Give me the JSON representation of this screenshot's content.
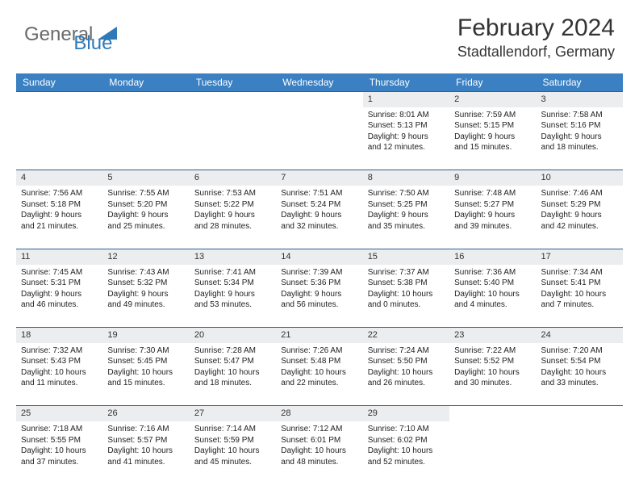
{
  "logo": {
    "part1": "General",
    "part2": "Blue"
  },
  "title": "February 2024",
  "location": "Stadtallendorf, Germany",
  "colors": {
    "header_bg": "#3a80c3",
    "header_fg": "#ffffff",
    "daynum_bg": "#ecedee",
    "row_border": "#2f5f8f",
    "logo_gray": "#6a6a6a",
    "logo_blue": "#2f79b9"
  },
  "daysOfWeek": [
    "Sunday",
    "Monday",
    "Tuesday",
    "Wednesday",
    "Thursday",
    "Friday",
    "Saturday"
  ],
  "weeks": [
    {
      "nums": [
        "",
        "",
        "",
        "",
        "1",
        "2",
        "3"
      ],
      "cells": [
        null,
        null,
        null,
        null,
        {
          "sunrise": "8:01 AM",
          "sunset": "5:13 PM",
          "dl_h": 9,
          "dl_m": 12
        },
        {
          "sunrise": "7:59 AM",
          "sunset": "5:15 PM",
          "dl_h": 9,
          "dl_m": 15
        },
        {
          "sunrise": "7:58 AM",
          "sunset": "5:16 PM",
          "dl_h": 9,
          "dl_m": 18
        }
      ]
    },
    {
      "nums": [
        "4",
        "5",
        "6",
        "7",
        "8",
        "9",
        "10"
      ],
      "cells": [
        {
          "sunrise": "7:56 AM",
          "sunset": "5:18 PM",
          "dl_h": 9,
          "dl_m": 21
        },
        {
          "sunrise": "7:55 AM",
          "sunset": "5:20 PM",
          "dl_h": 9,
          "dl_m": 25
        },
        {
          "sunrise": "7:53 AM",
          "sunset": "5:22 PM",
          "dl_h": 9,
          "dl_m": 28
        },
        {
          "sunrise": "7:51 AM",
          "sunset": "5:24 PM",
          "dl_h": 9,
          "dl_m": 32
        },
        {
          "sunrise": "7:50 AM",
          "sunset": "5:25 PM",
          "dl_h": 9,
          "dl_m": 35
        },
        {
          "sunrise": "7:48 AM",
          "sunset": "5:27 PM",
          "dl_h": 9,
          "dl_m": 39
        },
        {
          "sunrise": "7:46 AM",
          "sunset": "5:29 PM",
          "dl_h": 9,
          "dl_m": 42
        }
      ]
    },
    {
      "nums": [
        "11",
        "12",
        "13",
        "14",
        "15",
        "16",
        "17"
      ],
      "cells": [
        {
          "sunrise": "7:45 AM",
          "sunset": "5:31 PM",
          "dl_h": 9,
          "dl_m": 46
        },
        {
          "sunrise": "7:43 AM",
          "sunset": "5:32 PM",
          "dl_h": 9,
          "dl_m": 49
        },
        {
          "sunrise": "7:41 AM",
          "sunset": "5:34 PM",
          "dl_h": 9,
          "dl_m": 53
        },
        {
          "sunrise": "7:39 AM",
          "sunset": "5:36 PM",
          "dl_h": 9,
          "dl_m": 56
        },
        {
          "sunrise": "7:37 AM",
          "sunset": "5:38 PM",
          "dl_h": 10,
          "dl_m": 0
        },
        {
          "sunrise": "7:36 AM",
          "sunset": "5:40 PM",
          "dl_h": 10,
          "dl_m": 4
        },
        {
          "sunrise": "7:34 AM",
          "sunset": "5:41 PM",
          "dl_h": 10,
          "dl_m": 7
        }
      ]
    },
    {
      "nums": [
        "18",
        "19",
        "20",
        "21",
        "22",
        "23",
        "24"
      ],
      "cells": [
        {
          "sunrise": "7:32 AM",
          "sunset": "5:43 PM",
          "dl_h": 10,
          "dl_m": 11
        },
        {
          "sunrise": "7:30 AM",
          "sunset": "5:45 PM",
          "dl_h": 10,
          "dl_m": 15
        },
        {
          "sunrise": "7:28 AM",
          "sunset": "5:47 PM",
          "dl_h": 10,
          "dl_m": 18
        },
        {
          "sunrise": "7:26 AM",
          "sunset": "5:48 PM",
          "dl_h": 10,
          "dl_m": 22
        },
        {
          "sunrise": "7:24 AM",
          "sunset": "5:50 PM",
          "dl_h": 10,
          "dl_m": 26
        },
        {
          "sunrise": "7:22 AM",
          "sunset": "5:52 PM",
          "dl_h": 10,
          "dl_m": 30
        },
        {
          "sunrise": "7:20 AM",
          "sunset": "5:54 PM",
          "dl_h": 10,
          "dl_m": 33
        }
      ]
    },
    {
      "nums": [
        "25",
        "26",
        "27",
        "28",
        "29",
        "",
        ""
      ],
      "cells": [
        {
          "sunrise": "7:18 AM",
          "sunset": "5:55 PM",
          "dl_h": 10,
          "dl_m": 37
        },
        {
          "sunrise": "7:16 AM",
          "sunset": "5:57 PM",
          "dl_h": 10,
          "dl_m": 41
        },
        {
          "sunrise": "7:14 AM",
          "sunset": "5:59 PM",
          "dl_h": 10,
          "dl_m": 45
        },
        {
          "sunrise": "7:12 AM",
          "sunset": "6:01 PM",
          "dl_h": 10,
          "dl_m": 48
        },
        {
          "sunrise": "7:10 AM",
          "sunset": "6:02 PM",
          "dl_h": 10,
          "dl_m": 52
        },
        null,
        null
      ]
    }
  ]
}
